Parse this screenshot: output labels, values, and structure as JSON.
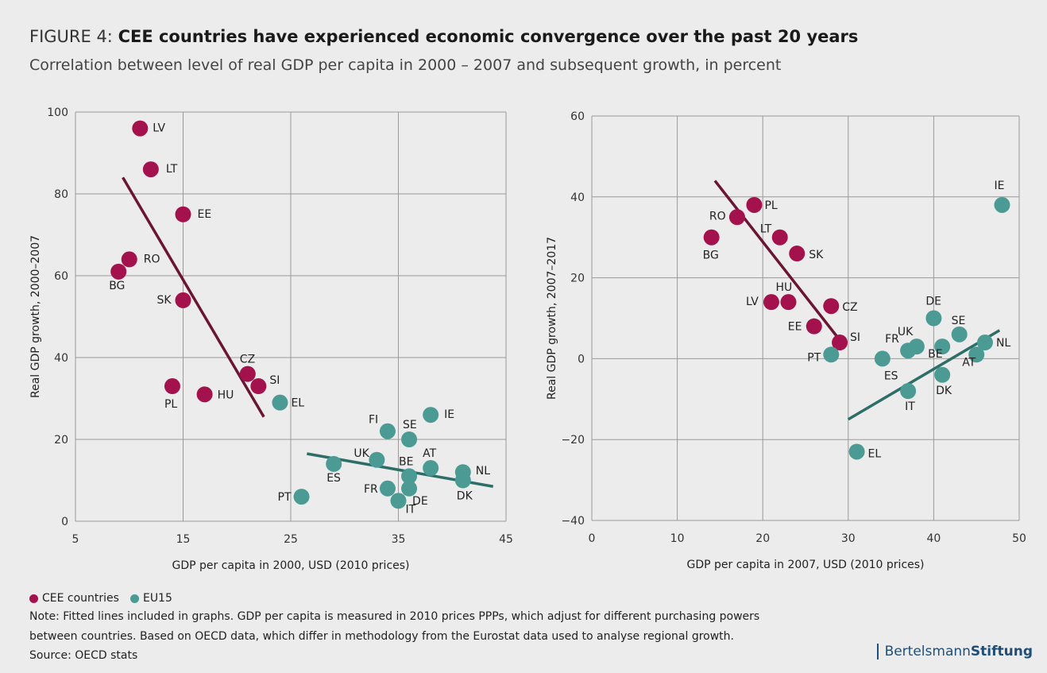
{
  "header": {
    "prefix": "FIGURE 4: ",
    "title": "CEE countries have experienced economic convergence over the past 20 years",
    "subtitle": "Correlation between level of real GDP per capita in 2000 – 2007 and subsequent growth, in percent"
  },
  "colors": {
    "cee": "#a3124c",
    "eu15": "#4b9b94",
    "cee_line": "#6b1535",
    "eu15_line": "#2e6e68",
    "grid": "#9a9a9a"
  },
  "chart_data": [
    {
      "type": "scatter",
      "xlabel": "GDP per capita in 2000, USD (2010 prices)",
      "ylabel": "Real GDP growth, 2000–2007",
      "xlim": [
        5,
        45
      ],
      "ylim": [
        0,
        100
      ],
      "xticks": [
        "5",
        "15",
        "25",
        "35",
        "45"
      ],
      "yticks": [
        "0",
        "20",
        "40",
        "60",
        "80",
        "100"
      ],
      "grid": true,
      "series": [
        {
          "name": "CEE countries",
          "points": [
            {
              "label": "LV",
              "x": 11,
              "y": 96
            },
            {
              "label": "LT",
              "x": 12,
              "y": 86
            },
            {
              "label": "EE",
              "x": 15,
              "y": 75
            },
            {
              "label": "RO",
              "x": 10,
              "y": 64
            },
            {
              "label": "BG",
              "x": 9,
              "y": 61
            },
            {
              "label": "SK",
              "x": 15,
              "y": 54
            },
            {
              "label": "CZ",
              "x": 21,
              "y": 36
            },
            {
              "label": "SI",
              "x": 22,
              "y": 33
            },
            {
              "label": "PL",
              "x": 14,
              "y": 33
            },
            {
              "label": "HU",
              "x": 17,
              "y": 31
            }
          ],
          "fit": [
            [
              9.4,
              84
            ],
            [
              22.5,
              25.5
            ]
          ]
        },
        {
          "name": "EU15",
          "points": [
            {
              "label": "EL",
              "x": 24,
              "y": 29
            },
            {
              "label": "IE",
              "x": 38,
              "y": 26
            },
            {
              "label": "FI",
              "x": 34,
              "y": 22
            },
            {
              "label": "SE",
              "x": 36,
              "y": 20
            },
            {
              "label": "UK",
              "x": 33,
              "y": 15
            },
            {
              "label": "ES",
              "x": 29,
              "y": 14
            },
            {
              "label": "AT",
              "x": 38,
              "y": 13
            },
            {
              "label": "NL",
              "x": 41,
              "y": 12
            },
            {
              "label": "BE",
              "x": 36,
              "y": 11
            },
            {
              "label": "DK",
              "x": 41,
              "y": 10
            },
            {
              "label": "FR",
              "x": 34,
              "y": 8
            },
            {
              "label": "DE",
              "x": 36,
              "y": 8
            },
            {
              "label": "PT",
              "x": 26,
              "y": 6
            },
            {
              "label": "IT",
              "x": 35,
              "y": 5
            }
          ],
          "fit": [
            [
              26.5,
              16.5
            ],
            [
              43.8,
              8.5
            ]
          ]
        }
      ]
    },
    {
      "type": "scatter",
      "xlabel": "GDP per capita in 2007, USD (2010 prices)",
      "ylabel": "Real GDP growth, 2007–2017",
      "xlim": [
        0,
        50
      ],
      "ylim": [
        -40,
        60
      ],
      "xticks": [
        "0",
        "10",
        "20",
        "30",
        "40",
        "50"
      ],
      "yticks": [
        "−40",
        "−20",
        "0",
        "20",
        "40",
        "60"
      ],
      "grid": true,
      "series": [
        {
          "name": "CEE countries",
          "points": [
            {
              "label": "PL",
              "x": 19,
              "y": 38
            },
            {
              "label": "RO",
              "x": 17,
              "y": 35
            },
            {
              "label": "BG",
              "x": 14,
              "y": 30
            },
            {
              "label": "LT",
              "x": 22,
              "y": 30
            },
            {
              "label": "SK",
              "x": 24,
              "y": 26
            },
            {
              "label": "LV",
              "x": 21,
              "y": 14
            },
            {
              "label": "HU",
              "x": 23,
              "y": 14
            },
            {
              "label": "CZ",
              "x": 28,
              "y": 13
            },
            {
              "label": "EE",
              "x": 26,
              "y": 8
            },
            {
              "label": "SI",
              "x": 29,
              "y": 4
            }
          ],
          "fit": [
            [
              14.4,
              44
            ],
            [
              29.6,
              3
            ]
          ]
        },
        {
          "name": "EU15",
          "points": [
            {
              "label": "IE",
              "x": 48,
              "y": 38
            },
            {
              "label": "DE",
              "x": 40,
              "y": 10
            },
            {
              "label": "SE",
              "x": 43,
              "y": 6
            },
            {
              "label": "NL",
              "x": 46,
              "y": 4
            },
            {
              "label": "UK",
              "x": 38,
              "y": 3
            },
            {
              "label": "FR",
              "x": 37,
              "y": 2
            },
            {
              "label": "BE",
              "x": 41,
              "y": 3
            },
            {
              "label": "AT",
              "x": 45,
              "y": 1
            },
            {
              "label": "PT",
              "x": 28,
              "y": 1
            },
            {
              "label": "ES",
              "x": 34,
              "y": 0
            },
            {
              "label": "DK",
              "x": 41,
              "y": -4
            },
            {
              "label": "IT",
              "x": 37,
              "y": -8
            },
            {
              "label": "EL",
              "x": 31,
              "y": -23
            }
          ],
          "fit": [
            [
              30,
              -15
            ],
            [
              47.7,
              7
            ]
          ]
        }
      ]
    }
  ],
  "legend": {
    "cee": "CEE countries",
    "eu15": "EU15"
  },
  "notes": [
    "Note: Fitted lines included in graphs. GDP per capita is measured in 2010 prices PPPs, which adjust for different purchasing powers",
    "between countries. Based on OECD data, which differ in methodology from the Eurostat data used to analyse regional growth.",
    "Source: OECD stats"
  ],
  "brand": {
    "part1": "Bertelsmann",
    "part2": "Stiftung"
  }
}
